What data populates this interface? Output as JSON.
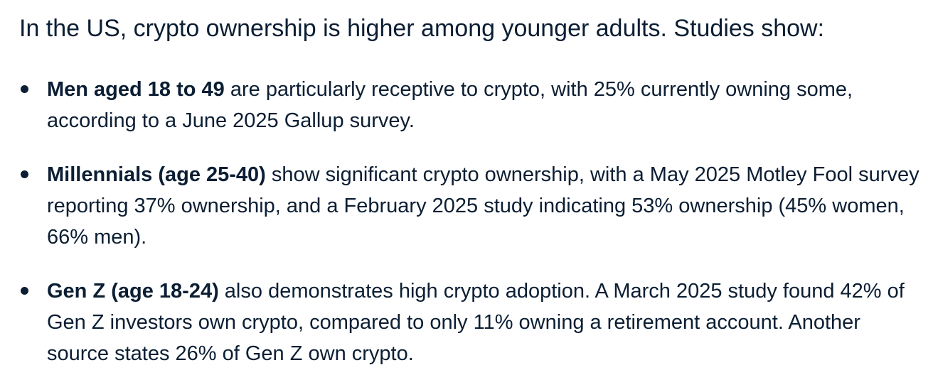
{
  "intro": "In the US, crypto ownership is higher among younger adults. Studies show:",
  "facts": [
    {
      "lead": "Men aged 18 to 49",
      "text": " are particularly receptive to crypto, with 25% currently owning some, according to a June 2025 Gallup survey."
    },
    {
      "lead": "Millennials (age 25-40)",
      "text": " show significant crypto ownership, with a May 2025 Motley Fool survey reporting 37% ownership, and a February 2025 study indicating 53% ownership (45% women, 66% men)."
    },
    {
      "lead": "Gen Z (age 18-24)",
      "text": " also demonstrates high crypto adoption. A March 2025 study found 42% of Gen Z investors own crypto, compared to only 11% owning a retirement account. Another source states 26% of Gen Z own crypto."
    }
  ]
}
